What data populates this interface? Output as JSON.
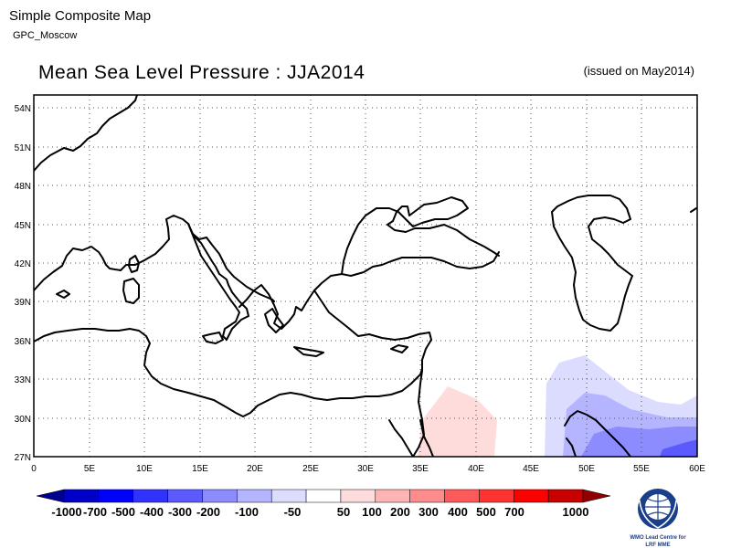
{
  "header": {
    "app_title": "Simple Composite Map",
    "center": "GPC_Moscow",
    "map_title": "Mean Sea Level Pressure : JJA2014",
    "issued": "(issued on May2014)"
  },
  "map": {
    "lon_ticks": [
      "0",
      "5E",
      "10E",
      "15E",
      "20E",
      "25E",
      "30E",
      "35E",
      "40E",
      "45E",
      "50E",
      "55E",
      "60E"
    ],
    "lat_ticks": [
      "54N",
      "51N",
      "48N",
      "45N",
      "42N",
      "39N",
      "36N",
      "33N",
      "30N",
      "27N"
    ],
    "lon_range": [
      0,
      60
    ],
    "lat_range": [
      27,
      55
    ],
    "grid": "dotted"
  },
  "colorbar": {
    "labels": [
      "-1000",
      "-700",
      "-500",
      "-400",
      "-300",
      "-200",
      "-100",
      "-50",
      "50",
      "100",
      "200",
      "300",
      "400",
      "500",
      "700",
      "1000"
    ],
    "colors": [
      "#000090",
      "#0000c8",
      "#0000ff",
      "#3232ff",
      "#5a5aff",
      "#8c8cff",
      "#b4b4ff",
      "#dcdcff",
      "#ffffff",
      "#ffdcdc",
      "#ffb4b4",
      "#ff8c8c",
      "#ff5a5a",
      "#ff3232",
      "#ff0000",
      "#c80000",
      "#900000"
    ]
  },
  "logo": {
    "line1": "WMO Lead Centre for",
    "line2": "LRF MME"
  }
}
